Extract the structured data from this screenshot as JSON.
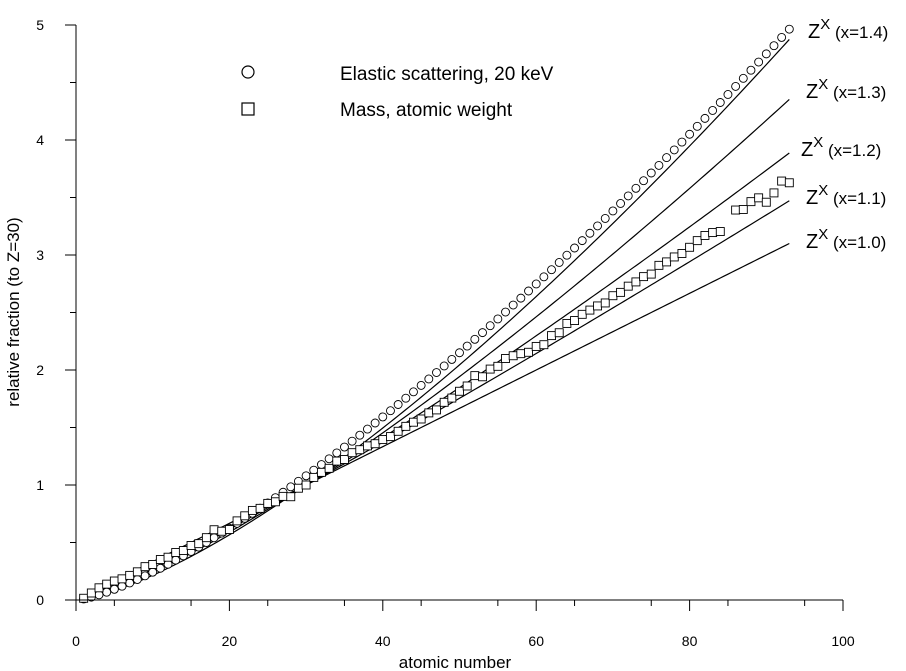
{
  "chart_data": {
    "type": "scatter",
    "xlabel": "atomic number",
    "ylabel": "relative fraction (to Z=30)",
    "xlim": [
      0,
      100
    ],
    "ylim": [
      0,
      5
    ],
    "x_ticks": [
      0,
      20,
      40,
      60,
      80,
      100
    ],
    "y_ticks": [
      0,
      1,
      2,
      3,
      4,
      5
    ],
    "x_tick_labels": [
      "0",
      "20",
      "40",
      "60",
      "80",
      "100"
    ],
    "y_tick_labels": [
      "0",
      "1",
      "2",
      "3",
      "4",
      "5"
    ],
    "grid": false,
    "legend_position": "top-left",
    "legend": [
      {
        "marker": "circle",
        "label": "Elastic scattering, 20 keV"
      },
      {
        "marker": "square",
        "label": "Mass, atomic weight"
      }
    ],
    "series": [
      {
        "marker": "circle",
        "x": [
          1,
          2,
          3,
          4,
          5,
          6,
          7,
          8,
          9,
          10,
          11,
          12,
          13,
          14,
          15,
          16,
          17,
          18,
          19,
          20,
          21,
          22,
          23,
          24,
          25,
          26,
          27,
          28,
          29,
          30,
          31,
          32,
          33,
          34,
          35,
          36,
          37,
          38,
          39,
          40,
          41,
          42,
          43,
          44,
          45,
          46,
          47,
          48,
          49,
          50,
          51,
          52,
          53,
          54,
          55,
          56,
          57,
          58,
          59,
          60,
          61,
          62,
          63,
          64,
          65,
          66,
          67,
          68,
          69,
          70,
          71,
          72,
          73,
          74,
          75,
          76,
          77,
          78,
          79,
          80,
          81,
          82,
          83,
          84,
          85,
          86,
          87,
          88,
          89,
          90,
          91,
          92,
          93
        ],
        "y": [
          0.009,
          0.025,
          0.045,
          0.068,
          0.093,
          0.12,
          0.148,
          0.178,
          0.21,
          0.242,
          0.276,
          0.311,
          0.347,
          0.384,
          0.422,
          0.46,
          0.5,
          0.541,
          0.582,
          0.624,
          0.666,
          0.71,
          0.754,
          0.798,
          0.844,
          0.89,
          0.937,
          0.984,
          1.032,
          1.08,
          1.129,
          1.178,
          1.228,
          1.279,
          1.33,
          1.381,
          1.433,
          1.486,
          1.539,
          1.592,
          1.646,
          1.7,
          1.755,
          1.81,
          1.866,
          1.922,
          1.978,
          2.035,
          2.092,
          2.15,
          2.208,
          2.267,
          2.325,
          2.385,
          2.444,
          2.504,
          2.565,
          2.625,
          2.687,
          2.748,
          2.81,
          2.872,
          2.935,
          2.998,
          3.061,
          3.125,
          3.189,
          3.253,
          3.318,
          3.383,
          3.448,
          3.514,
          3.58,
          3.646,
          3.713,
          3.779,
          3.847,
          3.914,
          3.982,
          4.05,
          4.119,
          4.188,
          4.257,
          4.326,
          4.396,
          4.466,
          4.536,
          4.607,
          4.678,
          4.749,
          4.82,
          4.892,
          4.964
        ]
      },
      {
        "marker": "square",
        "x": [
          1,
          2,
          3,
          4,
          5,
          6,
          7,
          8,
          9,
          10,
          11,
          12,
          13,
          14,
          15,
          16,
          17,
          18,
          19,
          20,
          21,
          22,
          23,
          24,
          25,
          26,
          27,
          28,
          29,
          30,
          31,
          32,
          33,
          34,
          35,
          36,
          37,
          38,
          39,
          40,
          41,
          42,
          43,
          44,
          45,
          46,
          47,
          48,
          49,
          50,
          51,
          52,
          53,
          54,
          55,
          56,
          57,
          58,
          59,
          60,
          61,
          62,
          63,
          64,
          65,
          66,
          67,
          68,
          69,
          70,
          71,
          72,
          73,
          74,
          75,
          76,
          77,
          78,
          79,
          80,
          81,
          82,
          83,
          84,
          86,
          87,
          88,
          89,
          90,
          91,
          92,
          93
        ],
        "y": [
          0.015,
          0.061,
          0.106,
          0.138,
          0.165,
          0.184,
          0.214,
          0.245,
          0.29,
          0.309,
          0.352,
          0.372,
          0.413,
          0.43,
          0.474,
          0.49,
          0.542,
          0.611,
          0.598,
          0.613,
          0.688,
          0.732,
          0.779,
          0.797,
          0.84,
          0.854,
          0.901,
          0.898,
          0.972,
          1.0,
          1.066,
          1.11,
          1.145,
          1.208,
          1.222,
          1.281,
          1.307,
          1.34,
          1.359,
          1.395,
          1.421,
          1.467,
          1.51,
          1.546,
          1.574,
          1.627,
          1.653,
          1.719,
          1.756,
          1.815,
          1.861,
          1.951,
          1.941,
          2.008,
          2.032,
          2.1,
          2.124,
          2.142,
          2.154,
          2.205,
          2.22,
          2.299,
          2.324,
          2.405,
          2.43,
          2.484,
          2.521,
          2.557,
          2.583,
          2.646,
          2.675,
          2.729,
          2.766,
          2.812,
          2.834,
          2.91,
          2.94,
          2.983,
          3.013,
          3.067,
          3.125,
          3.17,
          3.195,
          3.204,
          3.391,
          3.396,
          3.464,
          3.497,
          3.459,
          3.54,
          3.643,
          3.628
        ]
      }
    ],
    "curves": [
      {
        "label_base": "Z",
        "label_exp": "X",
        "label_rest": " (x=1.4)",
        "exponent": 1.4
      },
      {
        "label_base": "Z",
        "label_exp": "X",
        "label_rest": " (x=1.3)",
        "exponent": 1.3
      },
      {
        "label_base": "Z",
        "label_exp": "X",
        "label_rest": " (x=1.2)",
        "exponent": 1.2
      },
      {
        "label_base": "Z",
        "label_exp": "X",
        "label_rest": " (x=1.1)",
        "exponent": 1.1
      },
      {
        "label_base": "Z",
        "label_exp": "X",
        "label_rest": " (x=1.0)",
        "exponent": 1.0
      }
    ],
    "curve_x_range": [
      1,
      93
    ]
  }
}
